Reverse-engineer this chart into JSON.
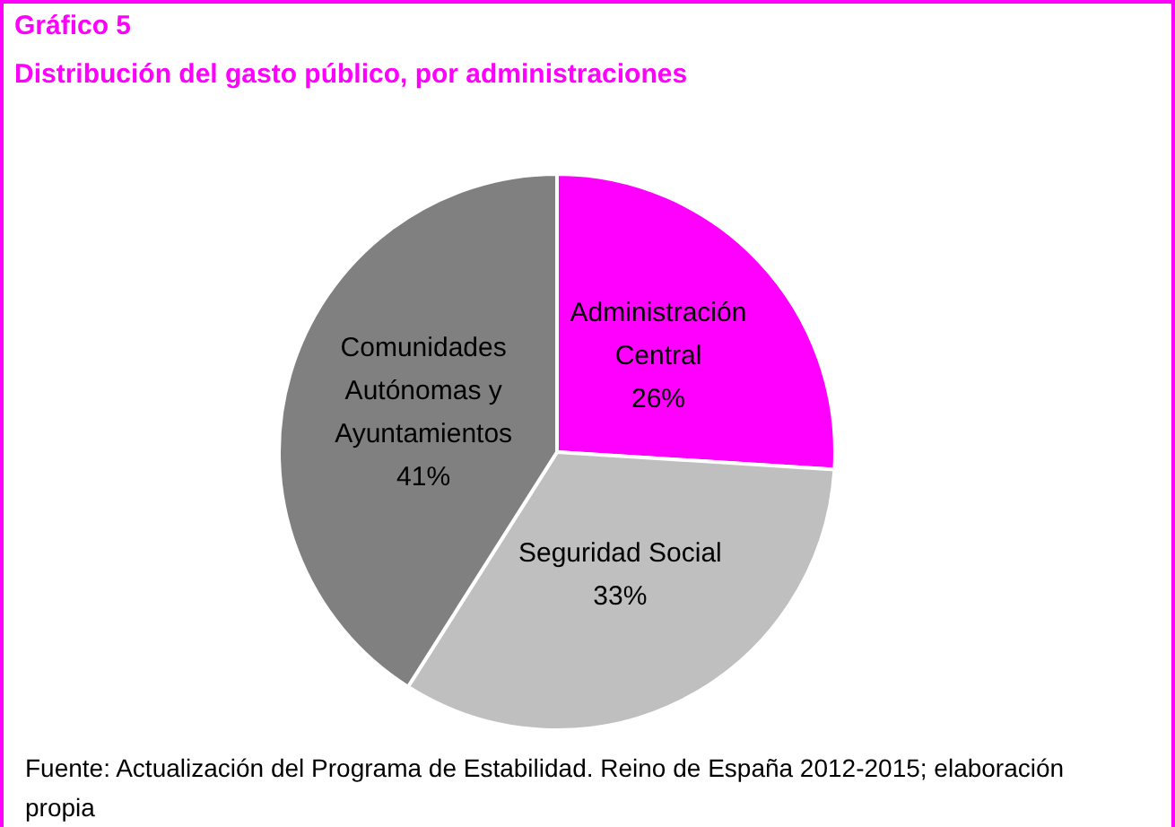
{
  "chart_data": {
    "type": "pie",
    "title": "Gráfico 5",
    "subtitle": "Distribución del gasto público, por administraciones",
    "categories": [
      "Administración Central",
      "Seguridad Social",
      "Comunidades Autónomas y Ayuntamientos"
    ],
    "values": [
      26,
      33,
      41
    ],
    "value_labels": [
      "26%",
      "33%",
      "41%"
    ],
    "colors": [
      "#ff00ff",
      "#bfbfbf",
      "#808080"
    ],
    "legend": false,
    "annotations": [
      "Fuente: Actualización del Programa de Estabilidad. Reino de España 2012-2015; elaboración propia"
    ]
  }
}
